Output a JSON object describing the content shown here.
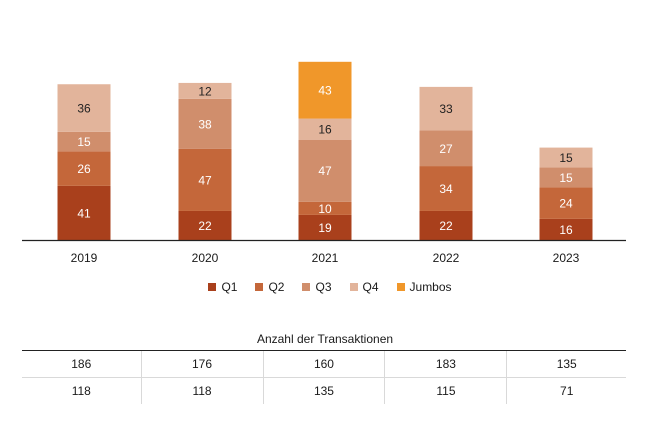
{
  "chart_data": {
    "type": "bar",
    "stacked": true,
    "categories": [
      "2019",
      "2020",
      "2021",
      "2022",
      "2023"
    ],
    "series": [
      {
        "name": "Q1",
        "color": "#a9401c",
        "label_color": "#ffffff",
        "values": [
          41,
          22,
          19,
          22,
          16
        ]
      },
      {
        "name": "Q2",
        "color": "#c4673a",
        "label_color": "#ffffff",
        "values": [
          26,
          47,
          10,
          34,
          24
        ]
      },
      {
        "name": "Q3",
        "color": "#d08e6c",
        "label_color": "#ffffff",
        "values": [
          15,
          38,
          47,
          27,
          15
        ]
      },
      {
        "name": "Q4",
        "color": "#e2b49b",
        "label_color": "#222222",
        "values": [
          36,
          12,
          16,
          33,
          15
        ]
      },
      {
        "name": "Jumbos",
        "color": "#f0972a",
        "label_color": "#ffffff",
        "values": [
          null,
          null,
          43,
          null,
          null
        ]
      }
    ],
    "legend_position": "bottom"
  },
  "table": {
    "title": "Anzahl der Transaktionen",
    "rows": [
      [
        "186",
        "176",
        "160",
        "183",
        "135"
      ],
      [
        "118",
        "118",
        "135",
        "115",
        "71"
      ]
    ]
  }
}
